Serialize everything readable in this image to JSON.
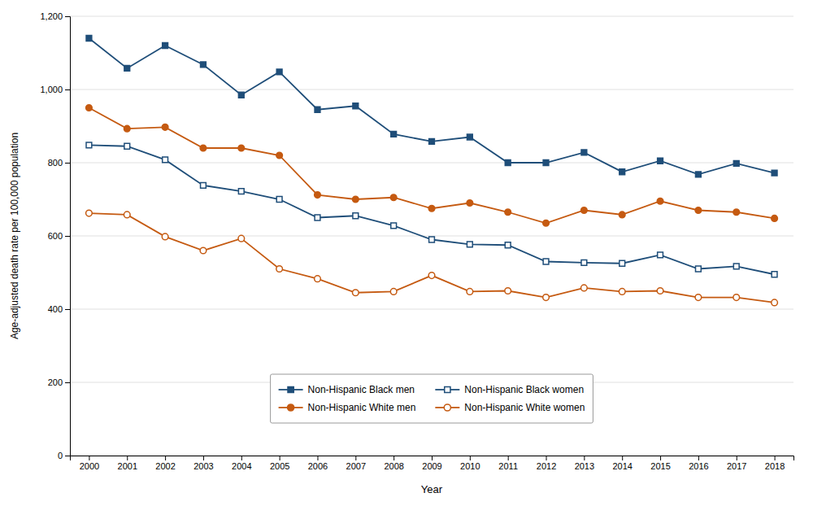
{
  "chart_data": {
    "type": "line",
    "x_label": "Year",
    "y_label": "Age-adjusted death rate per 100,000 population",
    "x": [
      2000,
      2001,
      2002,
      2003,
      2004,
      2005,
      2006,
      2007,
      2008,
      2009,
      2010,
      2011,
      2012,
      2013,
      2014,
      2015,
      2016,
      2017,
      2018
    ],
    "xlim": [
      1999.5,
      2018.5
    ],
    "xticks": [
      2000,
      2001,
      2002,
      2003,
      2004,
      2005,
      2006,
      2007,
      2008,
      2009,
      2010,
      2011,
      2012,
      2013,
      2014,
      2015,
      2016,
      2017,
      2018
    ],
    "ylim": [
      0,
      1200
    ],
    "yticks": [
      0,
      200,
      400,
      600,
      800,
      {
        "value": 1000,
        "label": "1,000"
      },
      {
        "value": 1200,
        "label": "1,200"
      }
    ],
    "grid": "y",
    "legend": "lower center",
    "series": [
      {
        "name": "Non-Hispanic Black men",
        "color": "#1F4E79",
        "marker": "square",
        "values": [
          1140,
          1058,
          1120,
          1068,
          985,
          1048,
          945,
          955,
          878,
          858,
          870,
          800,
          800,
          828,
          775,
          805,
          768,
          798,
          772
        ]
      },
      {
        "name": "Non-Hispanic White men",
        "color": "#C55A11",
        "marker": "circle",
        "values": [
          950,
          893,
          897,
          840,
          840,
          820,
          712,
          700,
          705,
          675,
          690,
          665,
          635,
          670,
          658,
          695,
          670,
          665,
          648
        ]
      },
      {
        "name": "Non-Hispanic Black women",
        "color": "#1F4E79",
        "marker": "open-square",
        "values": [
          848,
          845,
          808,
          738,
          722,
          700,
          650,
          655,
          628,
          590,
          577,
          575,
          530,
          527,
          525,
          548,
          510,
          517,
          495
        ]
      },
      {
        "name": "Non-Hispanic White women",
        "color": "#C55A11",
        "marker": "open-circle",
        "values": [
          662,
          658,
          598,
          560,
          593,
          510,
          483,
          445,
          448,
          492,
          448,
          450,
          432,
          458,
          448,
          450,
          432,
          432,
          418
        ]
      }
    ]
  }
}
